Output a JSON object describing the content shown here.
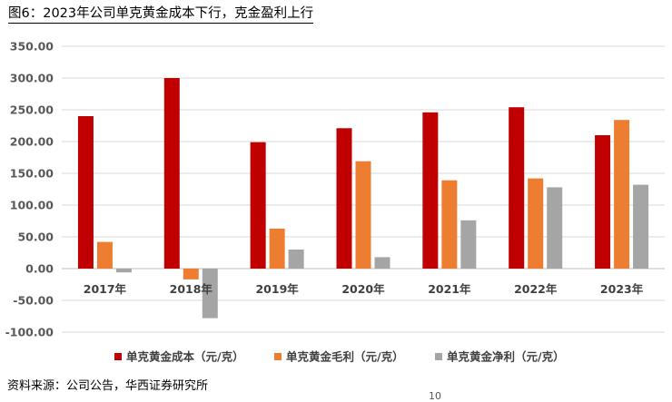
{
  "figure": {
    "title": "图6：2023年公司单克黄金成本下行，克金盈利上行",
    "source": "资料来源：公司公告，华西证券研究所",
    "page_number": "10"
  },
  "chart_data": {
    "type": "bar",
    "categories": [
      "2017年",
      "2018年",
      "2019年",
      "2020年",
      "2021年",
      "2022年",
      "2023年"
    ],
    "series": [
      {
        "name": "单克黄金成本（元/克）",
        "color": "#C00000",
        "values": [
          240,
          300,
          199,
          221,
          246,
          254,
          210
        ]
      },
      {
        "name": "单克黄金毛利（元/克）",
        "color": "#ED7D31",
        "values": [
          42,
          -17,
          63,
          169,
          139,
          142,
          234
        ]
      },
      {
        "name": "单克黄金净利（元/克）",
        "color": "#A5A5A5",
        "values": [
          -6,
          -78,
          30,
          18,
          76,
          128,
          132
        ]
      }
    ],
    "yticks": [
      "-100.00",
      "-50.00",
      "0.00",
      "50.00",
      "100.00",
      "150.00",
      "200.00",
      "250.00",
      "300.00",
      "350.00"
    ],
    "ylim": [
      -100,
      350
    ],
    "grid": true,
    "legend_position": "bottom"
  }
}
